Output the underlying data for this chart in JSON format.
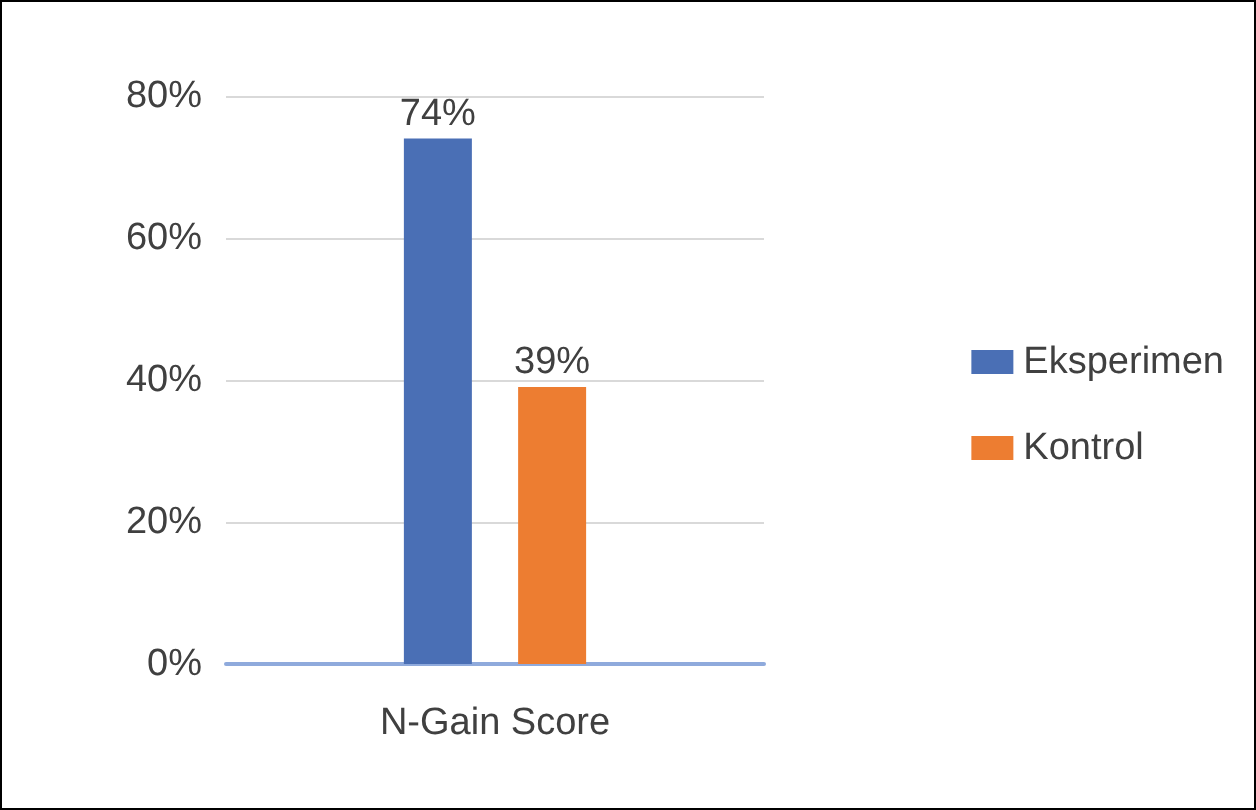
{
  "chart_data": {
    "type": "bar",
    "categories": [
      "N-Gain Score"
    ],
    "series": [
      {
        "name": "Eksperimen",
        "color": "#4a6fb5",
        "values": [
          74
        ],
        "value_labels": [
          "74%"
        ]
      },
      {
        "name": "Kontrol",
        "color": "#ed7d31",
        "values": [
          39
        ],
        "value_labels": [
          "39%"
        ]
      }
    ],
    "ylim": [
      0,
      80
    ],
    "yticks": [
      {
        "value": 0,
        "label": "0%"
      },
      {
        "value": 20,
        "label": "20%"
      },
      {
        "value": 40,
        "label": "40%"
      },
      {
        "value": 60,
        "label": "60%"
      },
      {
        "value": 80,
        "label": "80%"
      }
    ],
    "grid": "y",
    "legend": "right"
  }
}
